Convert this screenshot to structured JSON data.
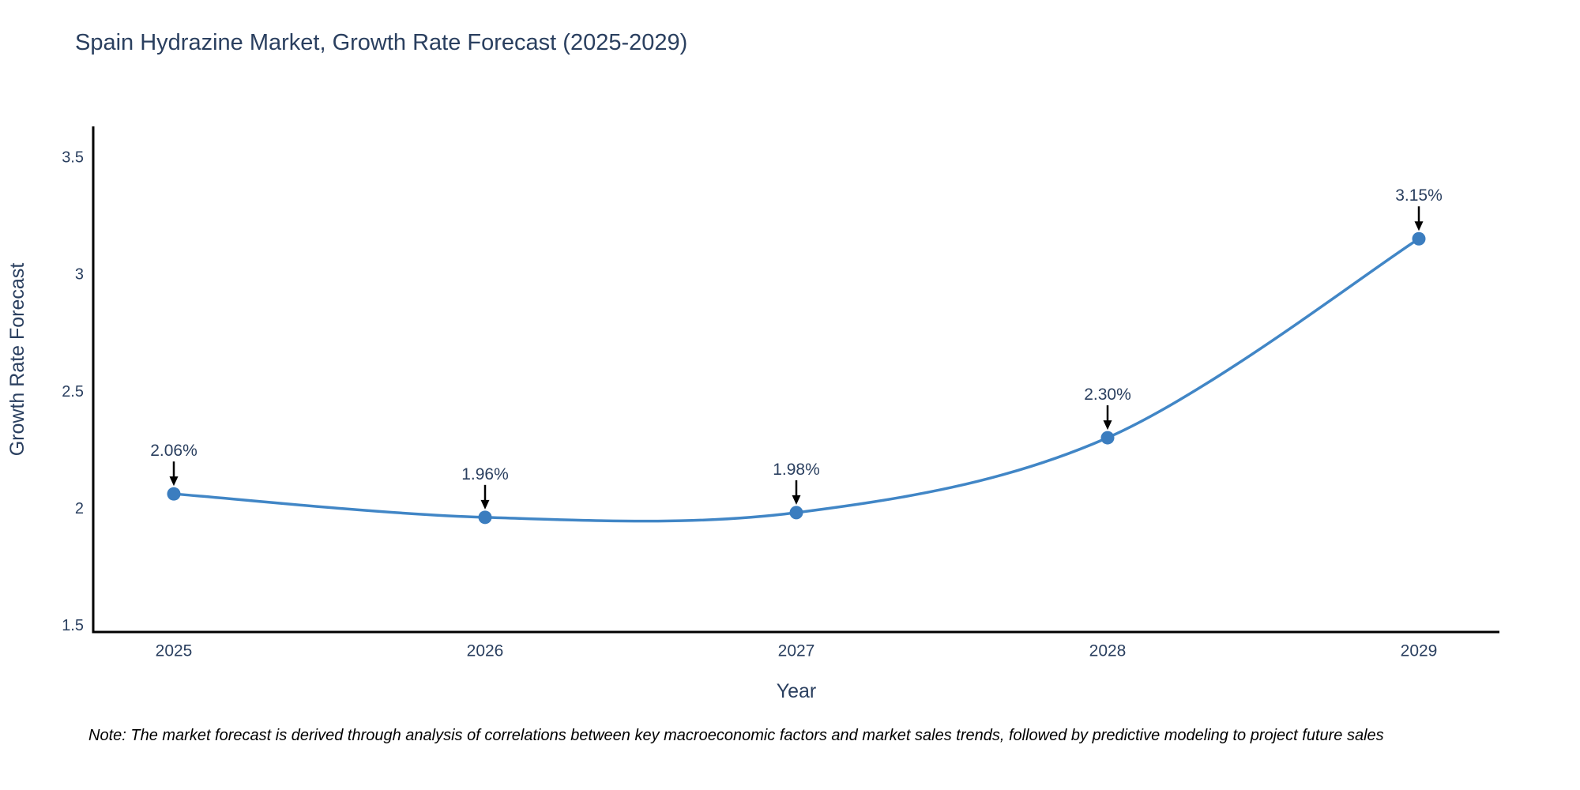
{
  "title": "Spain Hydrazine Market, Growth Rate Forecast (2025-2029)",
  "note": "Note: The market forecast is derived through analysis of correlations between key macroeconomic factors and market sales trends, followed by predictive modeling to project future sales",
  "colors": {
    "line": "#4186c6",
    "marker": "#3b7dbf",
    "axis": "#000000",
    "text": "#2a3f5f",
    "annotation_text": "#2a3f5f",
    "annotation_arrow": "#000000",
    "background": "#ffffff"
  },
  "chart_data": {
    "type": "line",
    "x": [
      2025,
      2026,
      2027,
      2028,
      2029
    ],
    "series": [
      {
        "name": "Growth Rate Forecast",
        "values": [
          2.06,
          1.96,
          1.98,
          2.3,
          3.15
        ],
        "point_labels": [
          "2.06%",
          "1.96%",
          "1.98%",
          "2.30%",
          "3.15%"
        ]
      }
    ],
    "title": "Spain Hydrazine Market, Growth Rate Forecast (2025-2029)",
    "xlabel": "Year",
    "ylabel": "Growth Rate Forecast",
    "xticks": [
      "2025",
      "2026",
      "2027",
      "2028",
      "2029"
    ],
    "yticks": [
      1.5,
      2,
      2.5,
      3,
      3.5
    ],
    "ylim": [
      1.47,
      3.63
    ],
    "line_shape": "spline",
    "grid": false,
    "legend_position": "none",
    "markers": true,
    "annotations_with_arrows": true
  }
}
